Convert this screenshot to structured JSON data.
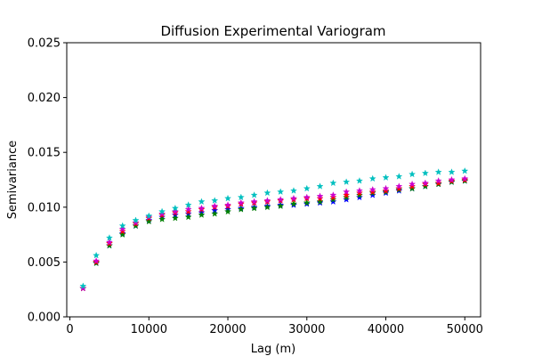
{
  "chart_data": {
    "type": "scatter",
    "title": "Diffusion Experimental Variogram",
    "xlabel": "Lag (m)",
    "ylabel": "Semivariance",
    "xlim": [
      -400,
      52000
    ],
    "ylim": [
      0,
      0.025
    ],
    "x_ticks": [
      0,
      10000,
      20000,
      30000,
      40000,
      50000
    ],
    "x_tick_labels": [
      "0",
      "10000",
      "20000",
      "30000",
      "40000",
      "50000"
    ],
    "y_ticks": [
      0.0,
      0.005,
      0.01,
      0.015,
      0.02,
      0.025
    ],
    "y_tick_labels": [
      "0.000",
      "0.005",
      "0.010",
      "0.015",
      "0.020",
      "0.025"
    ],
    "grid": false,
    "legend": false,
    "marker": "star",
    "x": [
      1667,
      3333,
      5000,
      6667,
      8333,
      10000,
      11667,
      13333,
      15000,
      16667,
      18333,
      20000,
      21667,
      23333,
      25000,
      26667,
      28333,
      30000,
      31667,
      33333,
      35000,
      36667,
      38333,
      40000,
      41667,
      43333,
      45000,
      46667,
      48333,
      50000
    ],
    "series": [
      {
        "color": "#0000ff",
        "values": [
          0.0026,
          0.0049,
          0.0065,
          0.0076,
          0.0083,
          0.0088,
          0.0091,
          0.0093,
          0.0094,
          0.0095,
          0.0097,
          0.0098,
          0.0099,
          0.01,
          0.0101,
          0.0102,
          0.0102,
          0.0103,
          0.0104,
          0.0105,
          0.0107,
          0.0109,
          0.0111,
          0.0113,
          0.0115,
          0.0117,
          0.0119,
          0.0121,
          0.0123,
          0.0124
        ]
      },
      {
        "color": "#008000",
        "values": [
          0.0026,
          0.0049,
          0.0065,
          0.0075,
          0.0083,
          0.0087,
          0.0089,
          0.009,
          0.0091,
          0.0093,
          0.0094,
          0.0096,
          0.0098,
          0.0099,
          0.01,
          0.0101,
          0.0103,
          0.0104,
          0.0105,
          0.0107,
          0.0109,
          0.0111,
          0.0113,
          0.0114,
          0.0116,
          0.0117,
          0.0119,
          0.0121,
          0.0123,
          0.0124
        ]
      },
      {
        "color": "#ff0000",
        "values": [
          0.0026,
          0.005,
          0.0067,
          0.0078,
          0.0085,
          0.009,
          0.0093,
          0.0095,
          0.0096,
          0.0098,
          0.01,
          0.0101,
          0.0103,
          0.0104,
          0.0105,
          0.0106,
          0.0107,
          0.0108,
          0.0108,
          0.0109,
          0.0111,
          0.0113,
          0.0114,
          0.0115,
          0.0117,
          0.0119,
          0.0121,
          0.0122,
          0.0124,
          0.0125
        ]
      },
      {
        "color": "#cc00cc",
        "values": [
          0.0026,
          0.0051,
          0.0068,
          0.008,
          0.0086,
          0.0091,
          0.0094,
          0.0096,
          0.0098,
          0.0099,
          0.0101,
          0.0102,
          0.0104,
          0.0105,
          0.0106,
          0.0107,
          0.0108,
          0.0109,
          0.011,
          0.0111,
          0.0114,
          0.0115,
          0.0116,
          0.0117,
          0.0119,
          0.0121,
          0.0122,
          0.0124,
          0.0125,
          0.0126
        ]
      },
      {
        "color": "#00bfbf",
        "values": [
          0.0028,
          0.0056,
          0.0072,
          0.0083,
          0.0088,
          0.0092,
          0.0096,
          0.0099,
          0.0102,
          0.0105,
          0.0106,
          0.0108,
          0.0109,
          0.0111,
          0.0113,
          0.0114,
          0.0115,
          0.0117,
          0.0119,
          0.0122,
          0.0123,
          0.0124,
          0.0126,
          0.0127,
          0.0128,
          0.013,
          0.0131,
          0.0132,
          0.0132,
          0.0133
        ]
      }
    ]
  }
}
